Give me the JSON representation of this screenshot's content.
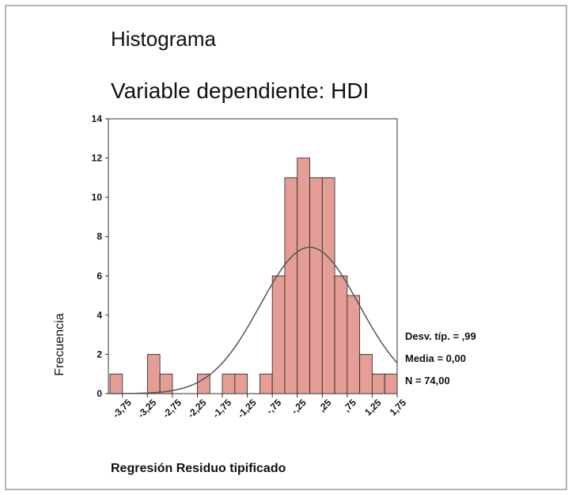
{
  "chart_data": {
    "type": "histogram",
    "title": "Histograma",
    "subtitle": "Variable dependiente: HDI",
    "x_label": "Regresión Residuo tipificado",
    "y_label": "Frecuencia",
    "bins": [
      -4,
      -3.75,
      -3.5,
      -3.25,
      -3,
      -2.75,
      -2.5,
      -2.25,
      -2,
      -1.75,
      -1.5,
      -1.25,
      -1,
      -0.75,
      -0.5,
      -0.25,
      0,
      0.25,
      0.5,
      0.75,
      1,
      1.25,
      1.5,
      1.75
    ],
    "values": [
      1,
      0,
      0,
      2,
      1,
      0,
      0,
      1,
      0,
      1,
      1,
      0,
      1,
      6,
      11,
      12,
      11,
      11,
      6,
      5,
      2,
      1,
      1
    ],
    "color": "#e59e95",
    "curve_color": "#555555",
    "xlim": [
      -4,
      1.75
    ],
    "ylim": [
      0,
      14
    ],
    "yticks": [
      0,
      2,
      4,
      6,
      8,
      10,
      12,
      14
    ],
    "xticks": [
      {
        "value": -3.75,
        "label": "-3,75"
      },
      {
        "value": -3.25,
        "label": "-3,25"
      },
      {
        "value": -2.75,
        "label": "-2,75"
      },
      {
        "value": -2.25,
        "label": "-2,25"
      },
      {
        "value": -1.75,
        "label": "-1,75"
      },
      {
        "value": -1.25,
        "label": "-1,25"
      },
      {
        "value": -0.75,
        "label": "-,75"
      },
      {
        "value": -0.25,
        "label": "-,25"
      },
      {
        "value": 0.25,
        "label": ",25"
      },
      {
        "value": 0.75,
        "label": ",75"
      },
      {
        "value": 1.25,
        "label": "1,25"
      },
      {
        "value": 1.75,
        "label": "1,75"
      }
    ],
    "stats": {
      "sd": {
        "value": 0.99,
        "label": "Desv. típ. = ,99"
      },
      "mean": {
        "value": 0,
        "label": "Media = 0,00"
      },
      "n": {
        "value": 74,
        "label": "N = 74,00"
      }
    }
  }
}
